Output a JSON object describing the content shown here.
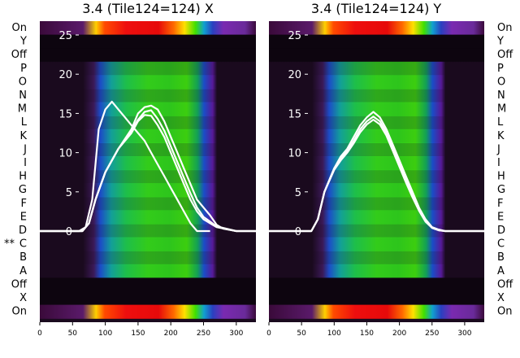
{
  "chart_data": [
    {
      "type": "heatmap",
      "title": "3.4 (Tile124=124) X",
      "xlabel": "",
      "ylabel": "",
      "xlim": [
        0,
        330
      ],
      "x_ticks": [
        0,
        50,
        100,
        150,
        200,
        250,
        300
      ],
      "inner_ylim": [
        -2.5,
        27
      ],
      "inner_y_ticks": [
        0,
        5,
        10,
        15,
        20,
        25
      ],
      "row_labels": [
        "On",
        "X",
        "Off",
        "A",
        "B",
        "C",
        "D",
        "E",
        "F",
        "G",
        "H",
        "I",
        "J",
        "K",
        "L",
        "M",
        "N",
        "O",
        "P",
        "Off",
        "Y",
        "On"
      ],
      "marker_row": "C",
      "marker_label": "**",
      "grid": false,
      "series": [
        {
          "values": [
            [
              0,
              0
            ],
            [
              60,
              0
            ],
            [
              70,
              0.5
            ],
            [
              80,
              4
            ],
            [
              90,
              13
            ],
            [
              100,
              15.5
            ],
            [
              110,
              16.5
            ],
            [
              120,
              15.5
            ],
            [
              130,
              14.5
            ],
            [
              140,
              13.5
            ],
            [
              150,
              12.5
            ],
            [
              160,
              11.5
            ],
            [
              170,
              10
            ],
            [
              180,
              8.5
            ],
            [
              190,
              7
            ],
            [
              200,
              5.5
            ],
            [
              210,
              4
            ],
            [
              220,
              2.5
            ],
            [
              230,
              1
            ],
            [
              240,
              0
            ],
            [
              250,
              0
            ],
            [
              260,
              0
            ]
          ]
        },
        {
          "values": [
            [
              0,
              0
            ],
            [
              65,
              0
            ],
            [
              75,
              1
            ],
            [
              85,
              4
            ],
            [
              100,
              7.5
            ],
            [
              120,
              10.5
            ],
            [
              140,
              13
            ],
            [
              150,
              15
            ],
            [
              160,
              15.8
            ],
            [
              170,
              16
            ],
            [
              180,
              15.5
            ],
            [
              190,
              14
            ],
            [
              200,
              12
            ],
            [
              210,
              10
            ],
            [
              220,
              8
            ],
            [
              230,
              6
            ],
            [
              240,
              4
            ],
            [
              250,
              3
            ],
            [
              260,
              2
            ],
            [
              270,
              0.8
            ],
            [
              280,
              0.3
            ],
            [
              300,
              0
            ],
            [
              330,
              0
            ]
          ]
        },
        {
          "values": [
            [
              0,
              0
            ],
            [
              65,
              0
            ],
            [
              75,
              1
            ],
            [
              85,
              4
            ],
            [
              100,
              7.5
            ],
            [
              120,
              10.5
            ],
            [
              140,
              12.5
            ],
            [
              150,
              14
            ],
            [
              160,
              14.8
            ],
            [
              170,
              14.7
            ],
            [
              180,
              13.5
            ],
            [
              190,
              12
            ],
            [
              200,
              10
            ],
            [
              210,
              8
            ],
            [
              220,
              6
            ],
            [
              230,
              4
            ],
            [
              240,
              2.5
            ],
            [
              250,
              1.5
            ],
            [
              260,
              1
            ],
            [
              270,
              0.5
            ],
            [
              300,
              0
            ],
            [
              330,
              0
            ]
          ]
        },
        {
          "values": [
            [
              0,
              0
            ],
            [
              65,
              0
            ],
            [
              75,
              1
            ],
            [
              85,
              4
            ],
            [
              100,
              7.5
            ],
            [
              120,
              10.5
            ],
            [
              140,
              12.8
            ],
            [
              150,
              14.2
            ],
            [
              160,
              15.2
            ],
            [
              170,
              15.4
            ],
            [
              180,
              14.3
            ],
            [
              190,
              12.8
            ],
            [
              200,
              10.8
            ],
            [
              210,
              8.8
            ],
            [
              220,
              6.8
            ],
            [
              230,
              4.8
            ],
            [
              240,
              3
            ],
            [
              250,
              1.8
            ],
            [
              260,
              1.2
            ],
            [
              270,
              0.6
            ],
            [
              300,
              0
            ],
            [
              330,
              0
            ]
          ]
        }
      ]
    },
    {
      "type": "heatmap",
      "title": "3.4 (Tile124=124) Y",
      "xlabel": "",
      "ylabel": "",
      "xlim": [
        0,
        330
      ],
      "x_ticks": [
        0,
        50,
        100,
        150,
        200,
        250,
        300
      ],
      "inner_ylim": [
        -2.5,
        27
      ],
      "inner_y_ticks": [
        0,
        5,
        10,
        15,
        20,
        25
      ],
      "row_labels": [
        "On",
        "X",
        "Off",
        "A",
        "B",
        "C",
        "D",
        "E",
        "F",
        "G",
        "H",
        "I",
        "J",
        "K",
        "L",
        "M",
        "N",
        "O",
        "P",
        "Off",
        "Y",
        "On"
      ],
      "grid": false,
      "series": [
        {
          "values": [
            [
              0,
              0
            ],
            [
              65,
              0
            ],
            [
              75,
              1.5
            ],
            [
              85,
              5
            ],
            [
              100,
              8
            ],
            [
              110,
              9.5
            ],
            [
              120,
              10.5
            ],
            [
              130,
              12
            ],
            [
              140,
              13.5
            ],
            [
              150,
              14.5
            ],
            [
              160,
              15.2
            ],
            [
              170,
              14.5
            ],
            [
              180,
              13
            ],
            [
              190,
              11
            ],
            [
              200,
              9
            ],
            [
              210,
              7
            ],
            [
              220,
              5
            ],
            [
              230,
              3
            ],
            [
              240,
              1.5
            ],
            [
              250,
              0.5
            ],
            [
              260,
              0.2
            ],
            [
              270,
              0
            ],
            [
              330,
              0
            ]
          ]
        },
        {
          "values": [
            [
              0,
              0
            ],
            [
              65,
              0
            ],
            [
              75,
              1.5
            ],
            [
              85,
              5
            ],
            [
              100,
              8
            ],
            [
              110,
              9.2
            ],
            [
              120,
              10.2
            ],
            [
              130,
              11.5
            ],
            [
              140,
              13
            ],
            [
              150,
              14
            ],
            [
              160,
              14.6
            ],
            [
              170,
              14
            ],
            [
              180,
              12.6
            ],
            [
              190,
              10.6
            ],
            [
              200,
              8.6
            ],
            [
              210,
              6.6
            ],
            [
              220,
              4.6
            ],
            [
              230,
              2.8
            ],
            [
              240,
              1.3
            ],
            [
              250,
              0.4
            ],
            [
              260,
              0.1
            ],
            [
              270,
              0
            ],
            [
              330,
              0
            ]
          ]
        },
        {
          "values": [
            [
              0,
              0
            ],
            [
              65,
              0
            ],
            [
              75,
              1.5
            ],
            [
              85,
              5
            ],
            [
              100,
              7.8
            ],
            [
              110,
              9
            ],
            [
              120,
              10
            ],
            [
              130,
              11.2
            ],
            [
              140,
              12.6
            ],
            [
              150,
              13.6
            ],
            [
              160,
              14.2
            ],
            [
              170,
              13.6
            ],
            [
              180,
              12.2
            ],
            [
              190,
              10.2
            ],
            [
              200,
              8.2
            ],
            [
              210,
              6.2
            ],
            [
              220,
              4.3
            ],
            [
              230,
              2.6
            ],
            [
              240,
              1.2
            ],
            [
              250,
              0.4
            ],
            [
              260,
              0.1
            ],
            [
              270,
              0
            ],
            [
              330,
              0
            ]
          ]
        }
      ]
    }
  ]
}
